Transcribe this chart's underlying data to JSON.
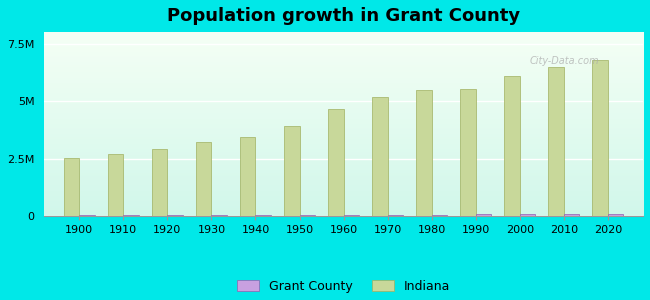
{
  "title": "Population growth in Grant County",
  "years": [
    1900,
    1910,
    1920,
    1930,
    1940,
    1950,
    1960,
    1970,
    1980,
    1990,
    2000,
    2010,
    2020
  ],
  "indiana_values": [
    2516462,
    2700876,
    2930390,
    3238503,
    3427796,
    3934224,
    4662498,
    5193669,
    5490224,
    5544159,
    6080485,
    6483802,
    6785528
  ],
  "grant_county_values": [
    26000,
    27000,
    29000,
    37000,
    40000,
    41000,
    51000,
    54000,
    63000,
    74000,
    74000,
    70000,
    66000
  ],
  "indiana_bar_color": "#c8d89a",
  "indiana_bar_edge": "#a0b060",
  "grant_county_bar_color": "#c8a0e0",
  "grant_county_bar_edge": "#9060b0",
  "background_color": "#00e8e8",
  "ylim": [
    0,
    8000000
  ],
  "yticks": [
    0,
    2500000,
    5000000,
    7500000
  ],
  "ytick_labels": [
    "0",
    "2.5M",
    "5M",
    "7.5M"
  ],
  "bar_width": 0.35,
  "watermark": "City-Data.com",
  "legend_grant_color": "#c8a0e0",
  "legend_indiana_color": "#c8d89a"
}
